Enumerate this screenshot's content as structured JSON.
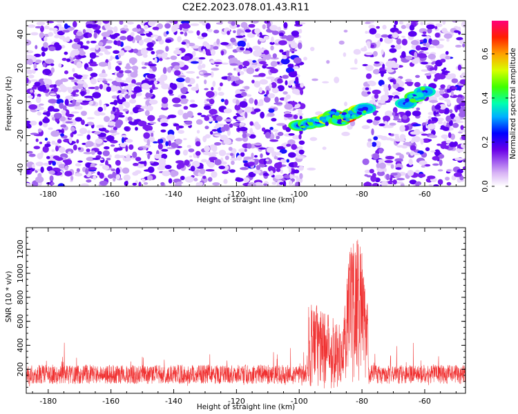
{
  "chart_data": [
    {
      "type": "heatmap",
      "title": "C2E2.2023.078.01.43.R11",
      "xlabel": "Height of straight line (km)",
      "ylabel": "Frequency (Hz)",
      "xlim": [
        -187,
        -47
      ],
      "ylim": [
        -50,
        48
      ],
      "xticks": [
        -180,
        -160,
        -140,
        -120,
        -100,
        -80,
        -60
      ],
      "yticks": [
        -40,
        -20,
        0,
        20,
        40
      ],
      "grid": false,
      "colorbar": {
        "label": "Normalized spectral amplitude",
        "range": [
          0,
          0.75
        ],
        "ticks": [
          0.0,
          0.2,
          0.4,
          0.6
        ]
      },
      "gap_x": [
        -99,
        -79
      ],
      "signal_ridge": [
        {
          "x": -100,
          "y": -14,
          "v": 0.28
        },
        {
          "x": -97,
          "y": -13,
          "v": 0.3
        },
        {
          "x": -94,
          "y": -12,
          "v": 0.32
        },
        {
          "x": -91,
          "y": -10,
          "v": 0.4
        },
        {
          "x": -89,
          "y": -8,
          "v": 0.35
        },
        {
          "x": -87,
          "y": -11,
          "v": 0.32
        },
        {
          "x": -85,
          "y": -9,
          "v": 0.55
        },
        {
          "x": -83,
          "y": -7,
          "v": 0.35
        },
        {
          "x": -81,
          "y": -5,
          "v": 0.42
        },
        {
          "x": -79,
          "y": -4,
          "v": 0.25
        },
        {
          "x": -66,
          "y": -1,
          "v": 0.25
        },
        {
          "x": -63,
          "y": 3,
          "v": 0.3
        },
        {
          "x": -60,
          "y": 6,
          "v": 0.25
        }
      ]
    },
    {
      "type": "line",
      "xlabel": "Height of straight line (km)",
      "ylabel": "SNR (10 * v/v)",
      "xlim": [
        -187,
        -47
      ],
      "ylim": [
        0,
        1380
      ],
      "xticks": [
        -180,
        -160,
        -140,
        -120,
        -100,
        -80,
        -60
      ],
      "yticks": [
        200,
        400,
        600,
        800,
        1000,
        1200
      ],
      "grid": false,
      "color": "#f03030",
      "baseline": 150,
      "envelope": [
        {
          "x": -187,
          "y": 300
        },
        {
          "x": -175,
          "y": 440
        },
        {
          "x": -150,
          "y": 320
        },
        {
          "x": -120,
          "y": 330
        },
        {
          "x": -102,
          "y": 380
        },
        {
          "x": -96,
          "y": 790
        },
        {
          "x": -93,
          "y": 700
        },
        {
          "x": -90,
          "y": 680
        },
        {
          "x": -86,
          "y": 570
        },
        {
          "x": -84,
          "y": 1260
        },
        {
          "x": -81,
          "y": 1380
        },
        {
          "x": -79,
          "y": 1000
        },
        {
          "x": -77,
          "y": 320
        },
        {
          "x": -62,
          "y": 470
        },
        {
          "x": -50,
          "y": 330
        },
        {
          "x": -47,
          "y": 300
        }
      ]
    }
  ]
}
